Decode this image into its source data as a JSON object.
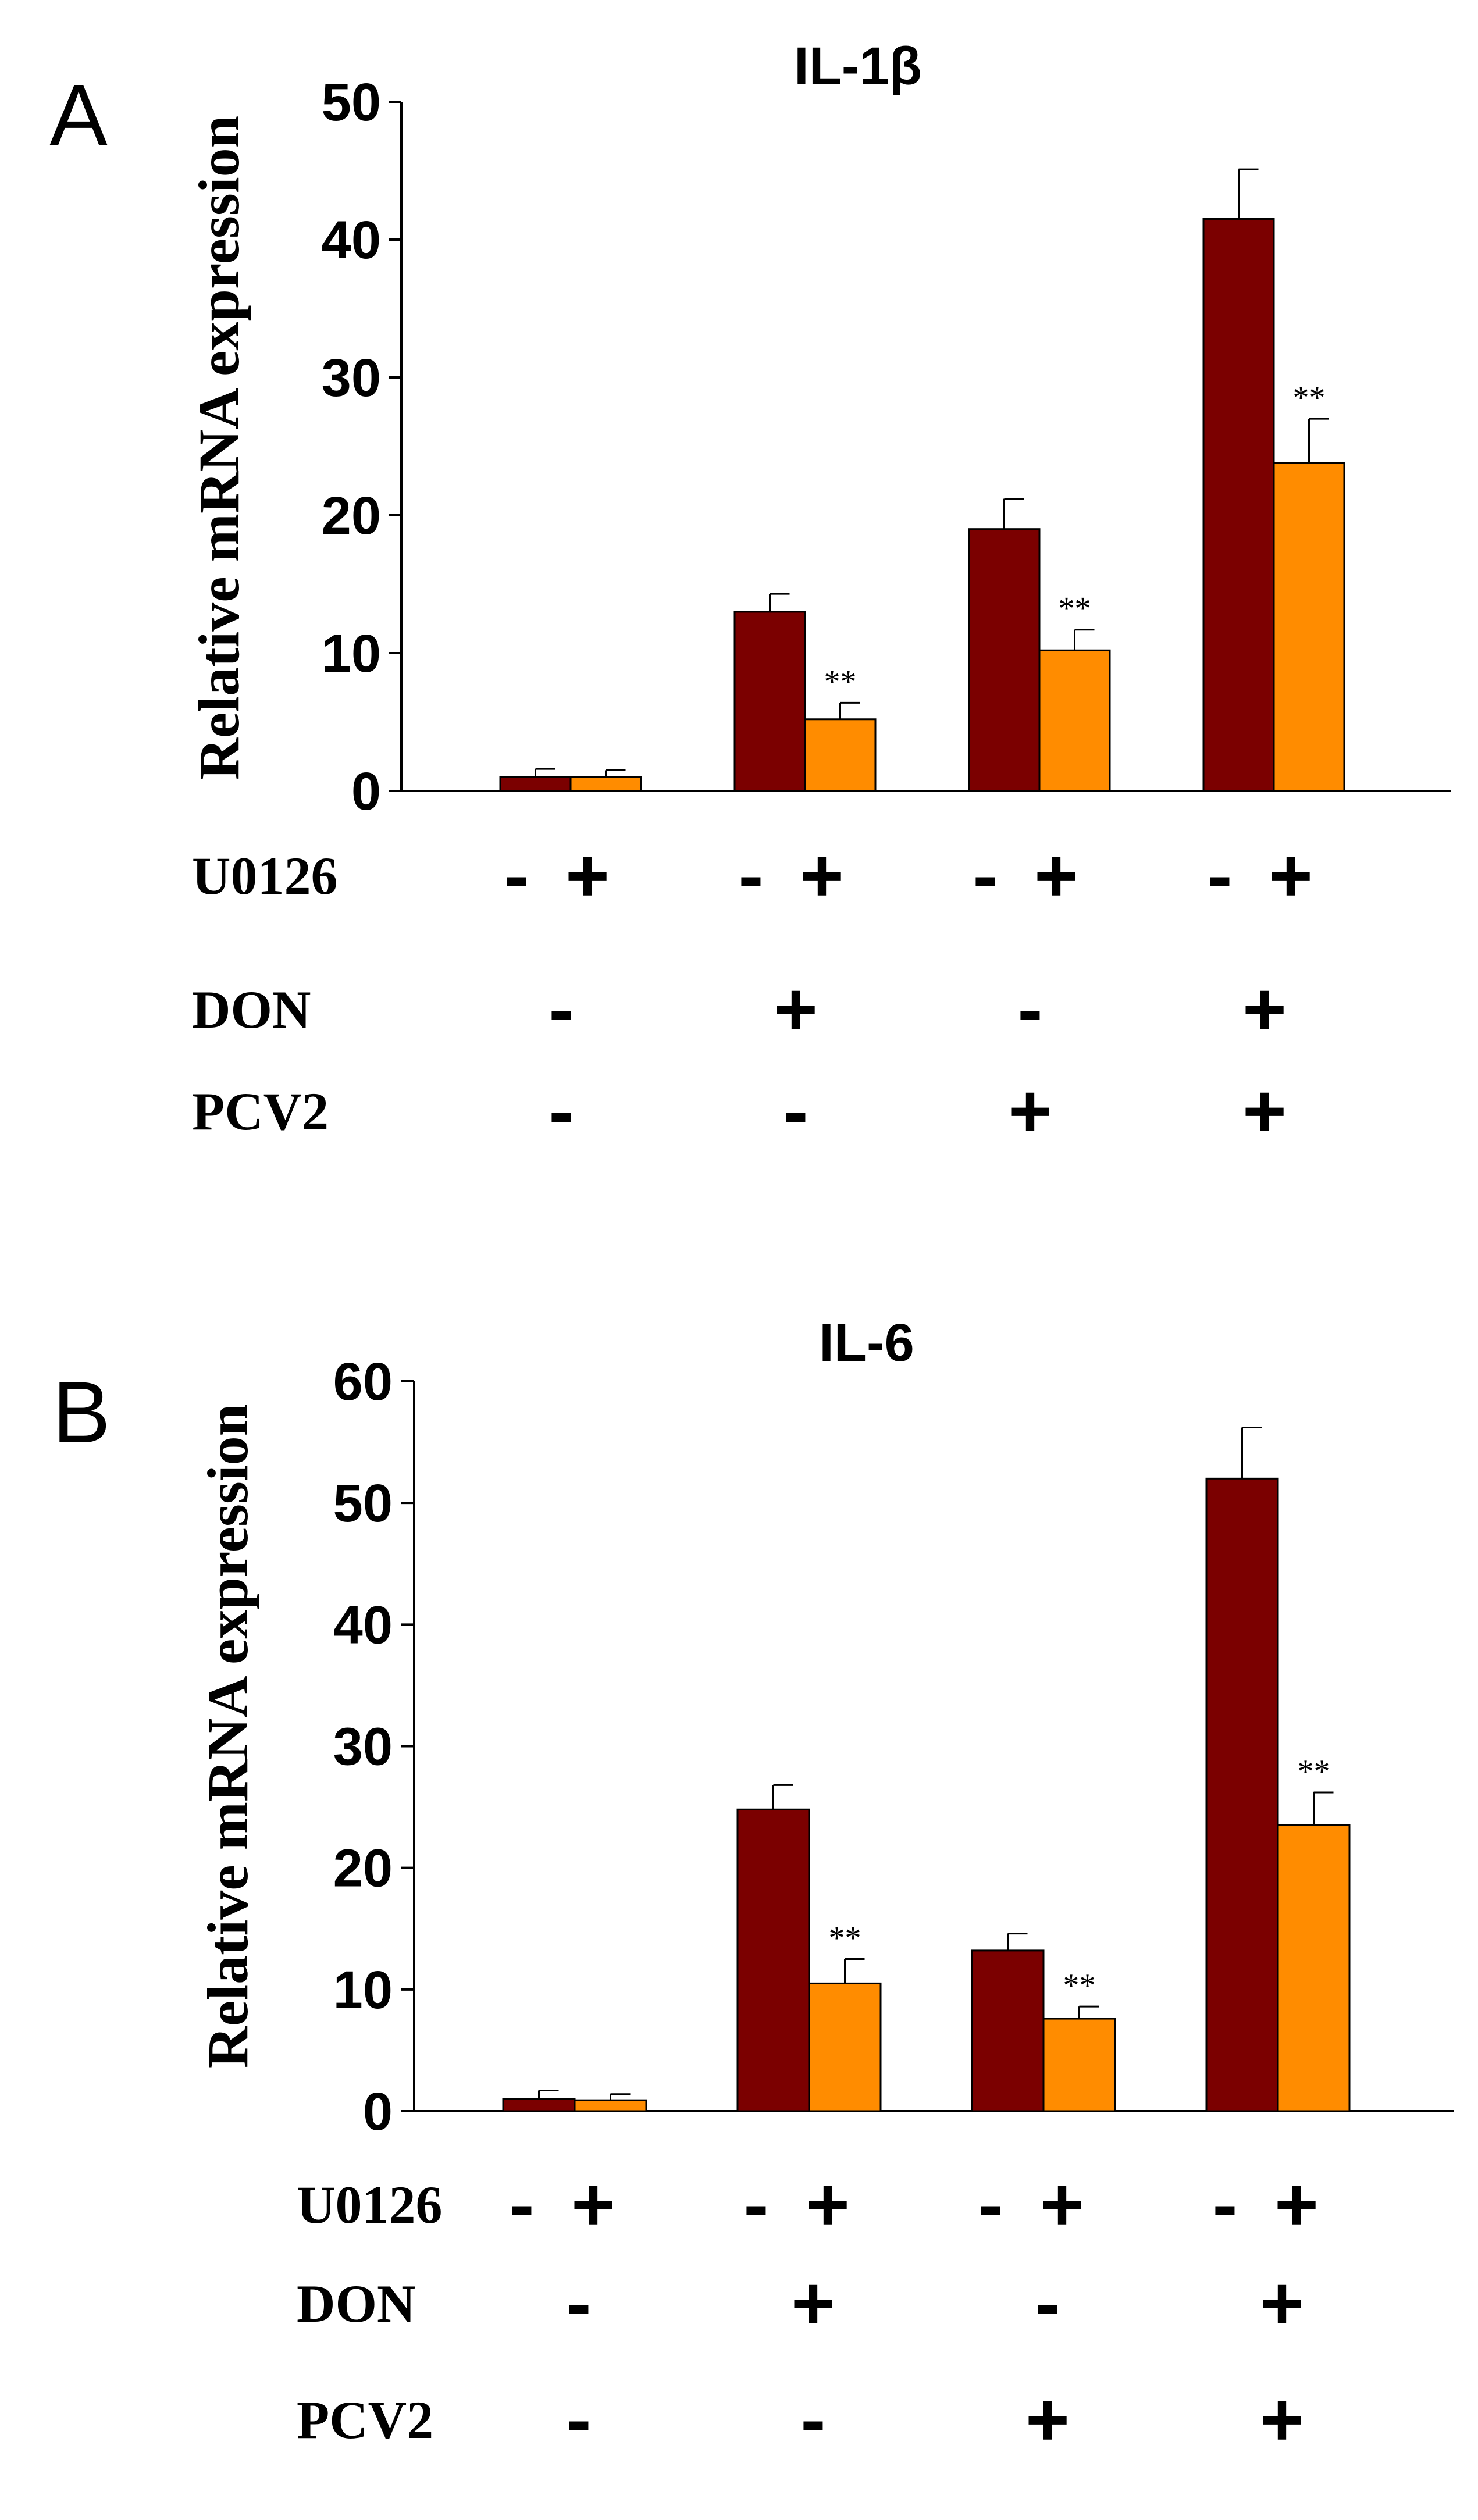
{
  "chart_data": [
    {
      "panel": "A",
      "type": "bar",
      "title": "IL-1β",
      "ylabel": "Relative mRNA expression",
      "xlabel": "",
      "ylim": [
        0,
        50
      ],
      "yticks": [
        0,
        10,
        20,
        30,
        40,
        50
      ],
      "grid": false,
      "groups": 4,
      "series": [
        {
          "name": "U0126 -",
          "color": "#7B0000",
          "values": [
            1.0,
            13.0,
            19.0,
            41.5
          ],
          "errors": [
            0.6,
            1.3,
            2.2,
            3.6
          ],
          "significance": [
            "",
            "",
            "",
            ""
          ]
        },
        {
          "name": "U0126 +",
          "color": "#FF8C00",
          "values": [
            1.0,
            5.2,
            10.2,
            23.8
          ],
          "errors": [
            0.5,
            1.2,
            1.5,
            3.2
          ],
          "significance": [
            "",
            "**",
            "**",
            "**"
          ]
        }
      ],
      "conditions": [
        {
          "label": "U0126",
          "per_bar": [
            [
              "-",
              "+"
            ],
            [
              "-",
              "+"
            ],
            [
              "-",
              "+"
            ],
            [
              "-",
              "+"
            ]
          ]
        },
        {
          "label": "DON",
          "per_group": [
            "-",
            "+",
            "-",
            "+"
          ]
        },
        {
          "label": "PCV2",
          "per_group": [
            "-",
            "-",
            "+",
            "+"
          ]
        }
      ]
    },
    {
      "panel": "B",
      "type": "bar",
      "title": "IL-6",
      "ylabel": "Relative mRNA expression",
      "xlabel": "",
      "ylim": [
        0,
        60
      ],
      "yticks": [
        0,
        10,
        20,
        30,
        40,
        50,
        60
      ],
      "grid": false,
      "groups": 4,
      "series": [
        {
          "name": "U0126 -",
          "color": "#7B0000",
          "values": [
            1.0,
            24.8,
            13.2,
            52.0
          ],
          "errors": [
            0.7,
            2.0,
            1.4,
            4.2
          ],
          "significance": [
            "",
            "",
            "",
            ""
          ]
        },
        {
          "name": "U0126 +",
          "color": "#FF8C00",
          "values": [
            0.9,
            10.5,
            7.6,
            23.5
          ],
          "errors": [
            0.5,
            2.0,
            1.0,
            2.7
          ],
          "significance": [
            "",
            "**",
            "**",
            "**"
          ]
        }
      ],
      "conditions": [
        {
          "label": "U0126",
          "per_bar": [
            [
              "-",
              "+"
            ],
            [
              "-",
              "+"
            ],
            [
              "-",
              "+"
            ],
            [
              "-",
              "+"
            ]
          ]
        },
        {
          "label": "DON",
          "per_group": [
            "-",
            "+",
            "-",
            "+"
          ]
        },
        {
          "label": "PCV2",
          "per_group": [
            "-",
            "-",
            "+",
            "+"
          ]
        }
      ]
    }
  ]
}
